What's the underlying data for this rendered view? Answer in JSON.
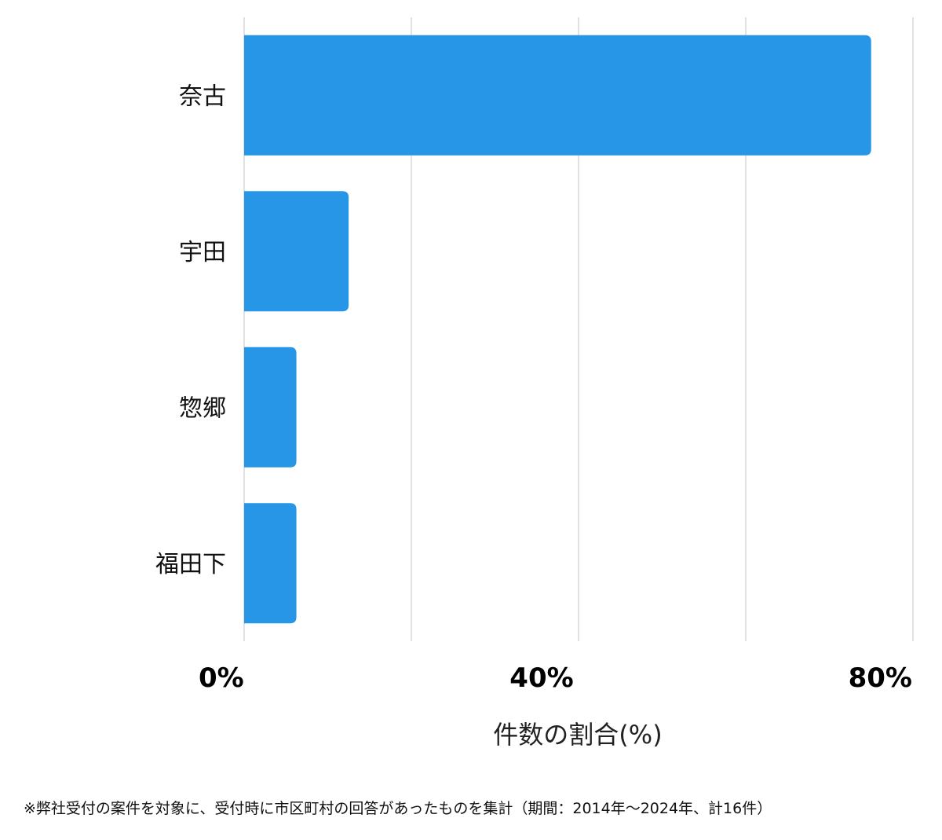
{
  "chart_data": {
    "type": "bar",
    "orientation": "horizontal",
    "categories": [
      "奈古",
      "宇田",
      "惣郷",
      "福田下"
    ],
    "values": [
      75,
      12.5,
      6.25,
      6.25
    ],
    "xlabel": "件数の割合(%)",
    "ylabel": "",
    "xlim": [
      0,
      80
    ],
    "x_ticks": [
      0,
      40,
      80
    ],
    "x_tick_labels": [
      "0%",
      "40%",
      "80%"
    ],
    "grid": true,
    "bar_color": "#2796E6",
    "grid_color": "#D9D9D9"
  },
  "footnote": "※弊社受付の案件を対象に、受付時に市区町村の回答があったものを集計（期間：2014年～2024年、計16件）"
}
